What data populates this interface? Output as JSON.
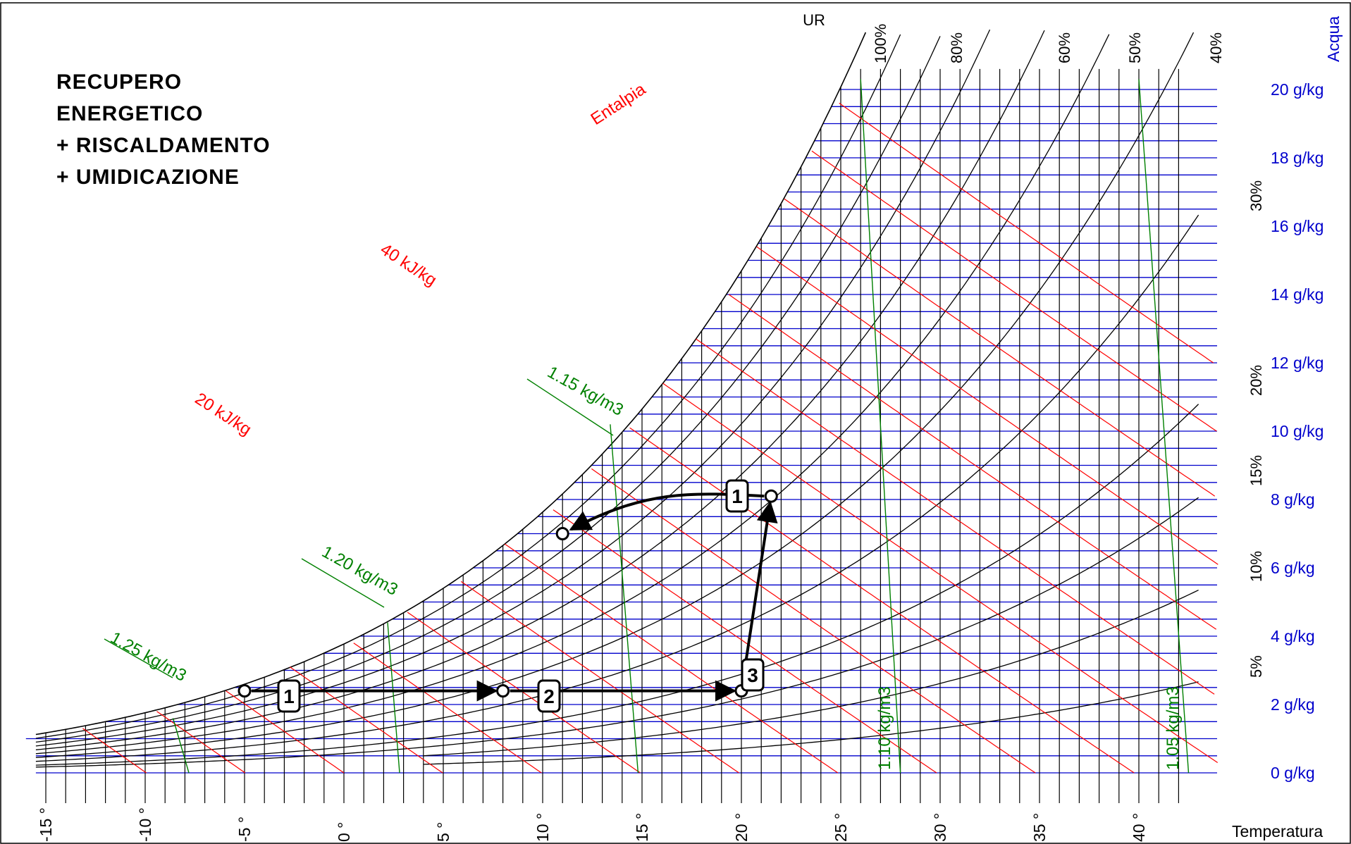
{
  "chart_data": {
    "type": "psychrometric",
    "title_lines": [
      "RECUPERO",
      "ENERGETICO",
      "+ RISCALDAMENTO",
      "+ UMIDICAZIONE"
    ],
    "x_axis": {
      "label": "Temperatura",
      "range": [
        -16,
        43
      ],
      "ticks": [
        -15,
        -10,
        -5,
        0,
        5,
        10,
        15,
        20,
        25,
        30,
        35,
        40
      ],
      "tick_labels": [
        "-15 °",
        "-10 °",
        "-5 °",
        "0 °",
        "5 °",
        "10 °",
        "15 °",
        "20 °",
        "25 °",
        "30 °",
        "35 °",
        "40 °"
      ]
    },
    "y_axis": {
      "label": "Acqua",
      "range": [
        0,
        20
      ],
      "ticks": [
        0,
        2,
        4,
        6,
        8,
        10,
        12,
        14,
        16,
        18,
        20
      ],
      "tick_labels": [
        "0 g/kg",
        "2 g/kg",
        "4 g/kg",
        "6 g/kg",
        "8 g/kg",
        "10 g/kg",
        "12 g/kg",
        "14 g/kg",
        "16 g/kg",
        "18 g/kg",
        "20 g/kg"
      ]
    },
    "relative_humidity": {
      "label": "UR",
      "curves_percent": [
        5,
        10,
        15,
        20,
        30,
        40,
        50,
        60,
        70,
        80,
        90,
        100
      ],
      "top_labels": [
        "100%",
        "80%",
        "60%",
        "50%",
        "40%"
      ],
      "right_labels": [
        "30%",
        "20%",
        "15%",
        "10%",
        "5%"
      ]
    },
    "enthalpy": {
      "name": "Entalpia",
      "labels": [
        "20 kJ/kg",
        "40 kJ/kg"
      ]
    },
    "density": {
      "labels": [
        "1.25 kg/m3",
        "1.20 kg/m3",
        "1.15 kg/m3",
        "1.10 kg/m3",
        "1.05 kg/m3"
      ]
    },
    "process_points": [
      {
        "label": "1",
        "t": -5,
        "x": 2.4
      },
      {
        "label": "2",
        "t": 8,
        "x": 2.4
      },
      {
        "label": "3",
        "t": 20,
        "x": 2.4
      },
      {
        "label": "1",
        "t": 21.5,
        "x": 8.1
      },
      {
        "label": "",
        "t": 11,
        "x": 7.0
      }
    ],
    "process_lines": [
      {
        "from": 0,
        "to": 1,
        "label": "1"
      },
      {
        "from": 1,
        "to": 2,
        "label": "2"
      },
      {
        "from": 2,
        "to": 3,
        "label": "3"
      },
      {
        "from": 3,
        "to": 4,
        "label": "1"
      }
    ],
    "colors": {
      "water_lines": "#0000cc",
      "enthalpy_lines": "#ff0000",
      "density_lines": "#008000",
      "rh_lines": "#000000",
      "temperature_lines": "#000000",
      "process": "#000000"
    }
  }
}
